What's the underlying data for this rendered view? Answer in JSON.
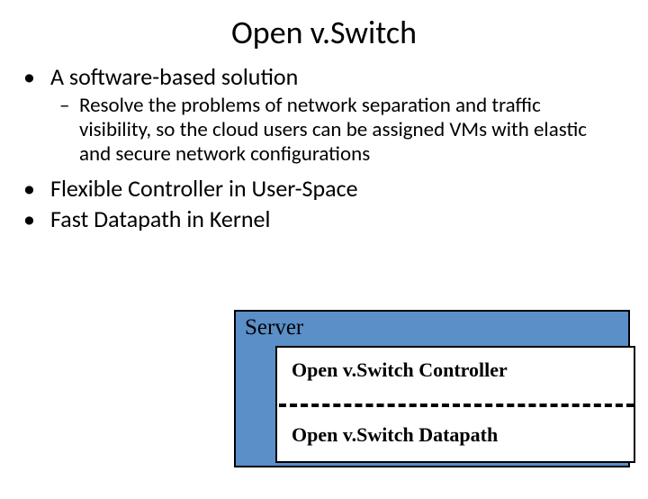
{
  "title": "Open v.Switch",
  "bullets": {
    "b1": "A software-based solution",
    "b1sub": "Resolve the problems of network separation and traffic visibility, so the cloud users can be assigned VMs with elastic and secure network configurations",
    "b2": "Flexible Controller in User-Space",
    "b3": "Fast Datapath in Kernel"
  },
  "diagram": {
    "server_label": "Server",
    "controller_label": "Open v.Switch Controller",
    "datapath_label": "Open v.Switch Datapath",
    "outer_box": {
      "fill_color": "#5a8fc8",
      "border_color": "#000000",
      "border_width": 2
    },
    "inner_box": {
      "fill_color": "#ffffff",
      "border_color": "#000000",
      "border_width": 2
    },
    "divider": {
      "style": "dashed",
      "color": "#000000",
      "width": 4
    },
    "font_family": "Times New Roman",
    "server_fontsize": 25,
    "label_fontsize": 22,
    "label_fontweight": "bold"
  },
  "layout": {
    "background_color": "#ffffff",
    "title_fontsize": 36,
    "bullet_fontsize": 26,
    "sub_bullet_fontsize": 23,
    "font_family": "Calibri"
  }
}
